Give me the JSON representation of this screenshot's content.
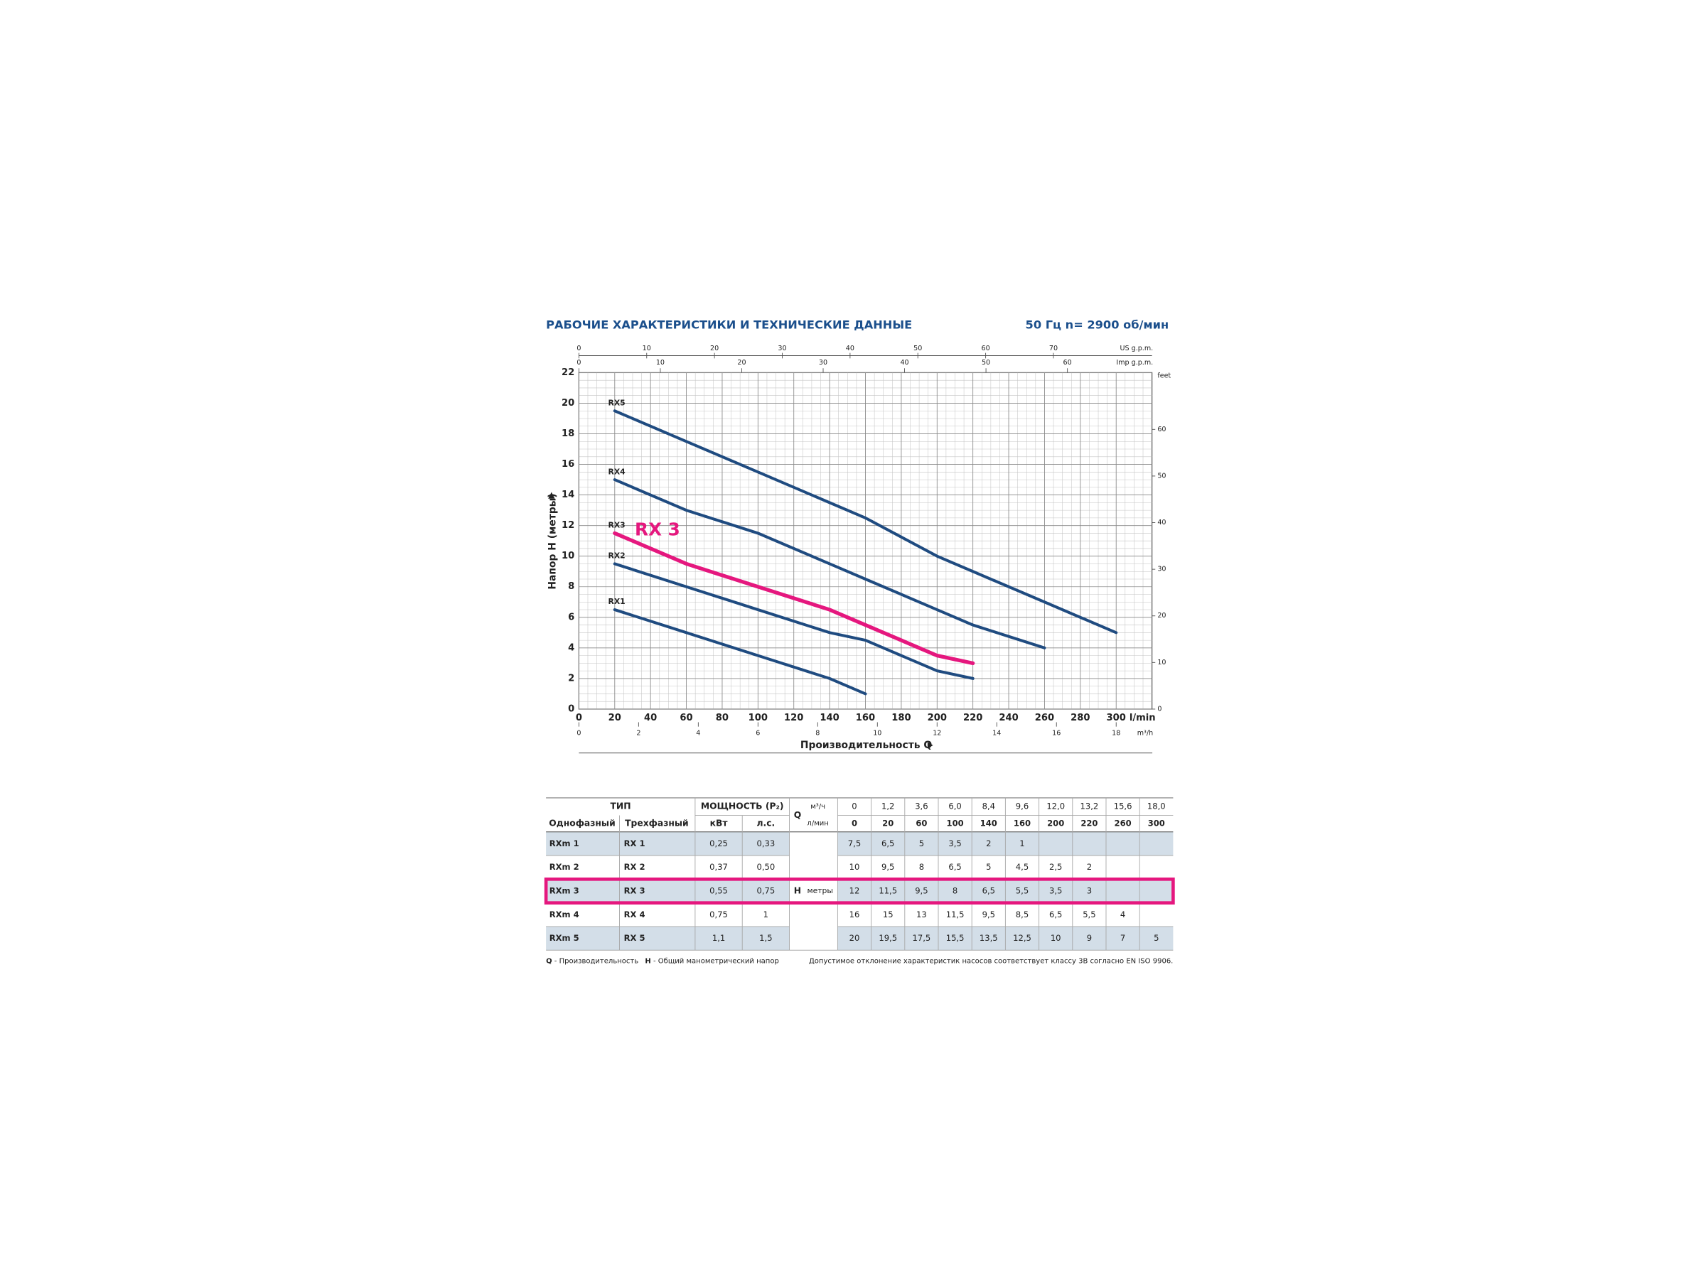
{
  "header": {
    "title": "РАБОЧИЕ ХАРАКТЕРИСТИКИ И ТЕХНИЧЕСКИЕ ДАННЫЕ",
    "frequency": "50 Гц",
    "speed": "n= 2900 об/мин"
  },
  "chart_data": {
    "type": "line",
    "ylabel": "Напор H (метры)",
    "xlabel": "Производительность Q",
    "xunit": "l/min",
    "x": [
      20,
      60,
      100,
      140,
      160,
      200,
      220,
      260,
      300
    ],
    "xlim": [
      0,
      320
    ],
    "xticks": [
      0,
      20,
      40,
      60,
      80,
      100,
      120,
      140,
      160,
      180,
      200,
      220,
      240,
      260,
      280,
      300
    ],
    "ylim": [
      0,
      22
    ],
    "yticks": [
      0,
      2,
      4,
      6,
      8,
      10,
      12,
      14,
      16,
      18,
      20,
      22
    ],
    "grid": true,
    "x_top_us": {
      "label": "US g.p.m.",
      "lim": [
        0,
        84.54
      ],
      "ticks": [
        0,
        10,
        20,
        30,
        40,
        50,
        60,
        70
      ]
    },
    "x_top_imp": {
      "label": "Imp g.p.m.",
      "lim": [
        0,
        70.39
      ],
      "ticks": [
        0,
        10,
        20,
        30,
        40,
        50,
        60
      ]
    },
    "x_bottom_m3h": {
      "label": "m³/h",
      "lim": [
        0,
        19.2
      ],
      "ticks": [
        0,
        2,
        4,
        6,
        8,
        10,
        12,
        14,
        16,
        18
      ]
    },
    "y2label": "feet",
    "y2lim": [
      0,
      72.18
    ],
    "y2ticks": [
      0,
      10,
      20,
      30,
      40,
      50,
      60
    ],
    "series": [
      {
        "name": "RX1",
        "color": "#1f4b80",
        "values": [
          6.5,
          5,
          3.5,
          2,
          1,
          null,
          null,
          null,
          null
        ]
      },
      {
        "name": "RX2",
        "color": "#1f4b80",
        "values": [
          9.5,
          8,
          6.5,
          5,
          4.5,
          2.5,
          2,
          null,
          null
        ]
      },
      {
        "name": "RX3",
        "color": "#e5177e",
        "values": [
          11.5,
          9.5,
          8,
          6.5,
          5.5,
          3.5,
          3,
          null,
          null
        ]
      },
      {
        "name": "RX4",
        "color": "#1f4b80",
        "values": [
          15,
          13,
          11.5,
          9.5,
          8.5,
          6.5,
          5.5,
          4,
          null
        ]
      },
      {
        "name": "RX5",
        "color": "#1f4b80",
        "values": [
          19.5,
          17.5,
          15.5,
          13.5,
          12.5,
          10,
          9,
          7,
          5
        ]
      }
    ],
    "annotation": {
      "text": "RX 3",
      "color": "#e5177e"
    }
  },
  "table": {
    "header": {
      "type": "ТИП",
      "power": "МОЩНОСТЬ (P₂)",
      "single_phase": "Однофазный",
      "three_phase": "Трехфазный",
      "kw": "кВт",
      "hp": "л.с.",
      "q": "Q",
      "q_m3h_unit": "м³/ч",
      "q_lmin_unit": "л/мин",
      "h": "H",
      "h_unit": "метры"
    },
    "q_m3h": [
      "0",
      "1,2",
      "3,6",
      "6,0",
      "8,4",
      "9,6",
      "12,0",
      "13,2",
      "15,6",
      "18,0"
    ],
    "q_lmin": [
      "0",
      "20",
      "60",
      "100",
      "140",
      "160",
      "200",
      "220",
      "260",
      "300"
    ],
    "rows": [
      {
        "single": "RXm 1",
        "three": "RX 1",
        "kw": "0,25",
        "hp": "0,33",
        "h": [
          "7,5",
          "6,5",
          "5",
          "3,5",
          "2",
          "1"
        ]
      },
      {
        "single": "RXm 2",
        "three": "RX 2",
        "kw": "0,37",
        "hp": "0,50",
        "h": [
          "10",
          "9,5",
          "8",
          "6,5",
          "5",
          "4,5",
          "2,5",
          "2"
        ]
      },
      {
        "single": "RXm 3",
        "three": "RX 3",
        "kw": "0,55",
        "hp": "0,75",
        "h": [
          "12",
          "11,5",
          "9,5",
          "8",
          "6,5",
          "5,5",
          "3,5",
          "3"
        ]
      },
      {
        "single": "RXm 4",
        "three": "RX 4",
        "kw": "0,75",
        "hp": "1",
        "h": [
          "16",
          "15",
          "13",
          "11,5",
          "9,5",
          "8,5",
          "6,5",
          "5,5",
          "4"
        ]
      },
      {
        "single": "RXm 5",
        "three": "RX 5",
        "kw": "1,1",
        "hp": "1,5",
        "h": [
          "20",
          "19,5",
          "17,5",
          "15,5",
          "13,5",
          "12,5",
          "10",
          "9",
          "7",
          "5"
        ]
      }
    ],
    "highlight_row": 2,
    "highlight_color": "#e5177e"
  },
  "footnote_left": [
    {
      "key": "Q",
      "text": " - Производительность"
    },
    {
      "key": "H",
      "text": " - Общий манометрический напор"
    }
  ],
  "footnote_right": "Допустимое отклонение характеристик насосов соответствует классу 3B согласно EN ISO 9906."
}
